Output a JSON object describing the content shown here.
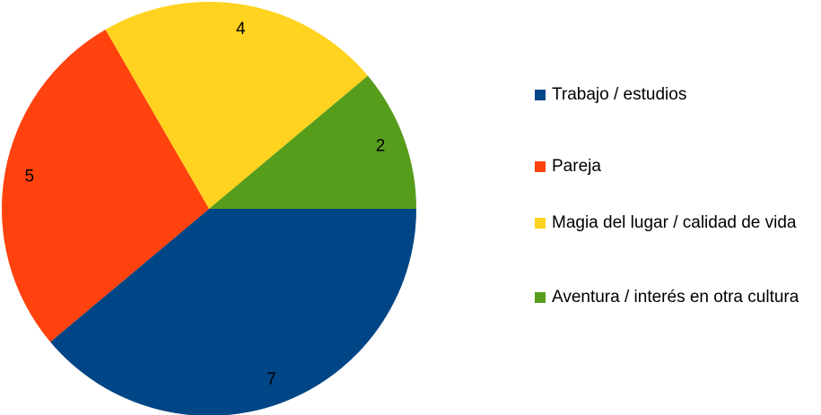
{
  "chart_data": {
    "type": "pie",
    "categories": [
      "Trabajo / estudios",
      "Pareja",
      "Magia del lugar / calidad de vida",
      "Aventura / interés en otra cultura"
    ],
    "values": [
      7,
      5,
      4,
      2
    ],
    "colors": [
      "#004586",
      "#ff420e",
      "#ffd320",
      "#579d1c"
    ],
    "legend": "right"
  }
}
